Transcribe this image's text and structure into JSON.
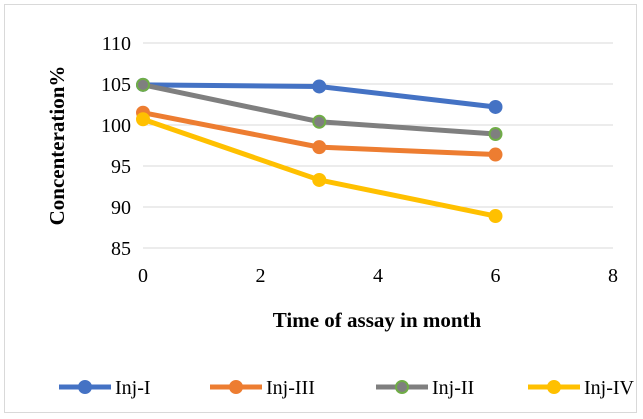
{
  "chart_data": {
    "type": "line",
    "title": "",
    "xlabel": "Time of assay in month",
    "ylabel": "Concenteration%",
    "xlim": [
      0,
      8
    ],
    "ylim": [
      85,
      110
    ],
    "x_ticks": [
      0,
      2,
      4,
      6,
      8
    ],
    "y_ticks": [
      85,
      90,
      95,
      100,
      105,
      110
    ],
    "grid": "horizontal",
    "legend_position": "bottom",
    "series": [
      {
        "name": "Inj-I",
        "color": "#4472C4",
        "marker_edge": "#4472C4",
        "x": [
          0,
          3,
          6
        ],
        "values": [
          104.9,
          104.7,
          102.2
        ]
      },
      {
        "name": "Inj-III",
        "color": "#ED7D31",
        "marker_edge": "#ED7D31",
        "x": [
          0,
          3,
          6
        ],
        "values": [
          101.5,
          97.3,
          96.4
        ]
      },
      {
        "name": "Inj-II",
        "color": "#7F7F7F",
        "marker_edge": "#70AD47",
        "x": [
          0,
          3,
          6
        ],
        "values": [
          104.9,
          100.4,
          98.9
        ]
      },
      {
        "name": "Inj-IV",
        "color": "#FFC000",
        "marker_edge": "#FFC000",
        "x": [
          0,
          3,
          6
        ],
        "values": [
          100.7,
          93.3,
          88.9
        ]
      }
    ]
  }
}
